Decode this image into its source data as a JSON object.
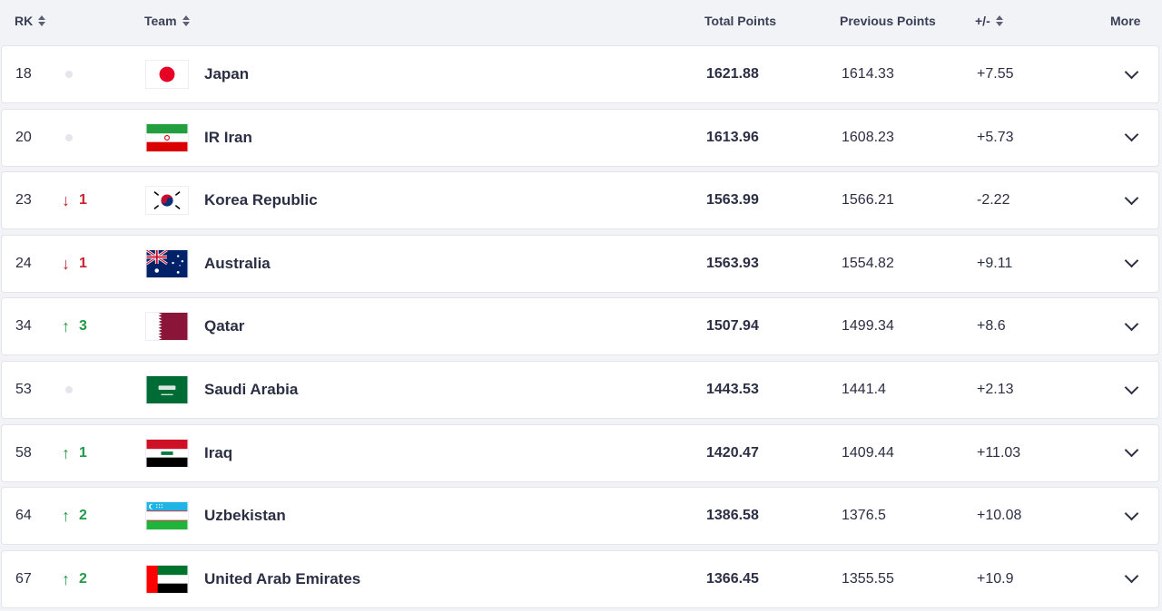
{
  "header": {
    "rk": "RK",
    "team": "Team",
    "total_points": "Total Points",
    "previous_points": "Previous Points",
    "diff": "+/-",
    "more": "More"
  },
  "rows": [
    {
      "rank": "18",
      "trend": "none",
      "change": "",
      "team": "Japan",
      "flag": "japan",
      "total": "1621.88",
      "previous": "1614.33",
      "diff": "+7.55"
    },
    {
      "rank": "20",
      "trend": "none",
      "change": "",
      "team": "IR Iran",
      "flag": "iran",
      "total": "1613.96",
      "previous": "1608.23",
      "diff": "+5.73"
    },
    {
      "rank": "23",
      "trend": "down",
      "change": "1",
      "team": "Korea Republic",
      "flag": "korea",
      "total": "1563.99",
      "previous": "1566.21",
      "diff": "-2.22"
    },
    {
      "rank": "24",
      "trend": "down",
      "change": "1",
      "team": "Australia",
      "flag": "australia",
      "total": "1563.93",
      "previous": "1554.82",
      "diff": "+9.11"
    },
    {
      "rank": "34",
      "trend": "up",
      "change": "3",
      "team": "Qatar",
      "flag": "qatar",
      "total": "1507.94",
      "previous": "1499.34",
      "diff": "+8.6"
    },
    {
      "rank": "53",
      "trend": "none",
      "change": "",
      "team": "Saudi Arabia",
      "flag": "saudi",
      "total": "1443.53",
      "previous": "1441.4",
      "diff": "+2.13"
    },
    {
      "rank": "58",
      "trend": "up",
      "change": "1",
      "team": "Iraq",
      "flag": "iraq",
      "total": "1420.47",
      "previous": "1409.44",
      "diff": "+11.03"
    },
    {
      "rank": "64",
      "trend": "up",
      "change": "2",
      "team": "Uzbekistan",
      "flag": "uzbekistan",
      "total": "1386.58",
      "previous": "1376.5",
      "diff": "+10.08"
    },
    {
      "rank": "67",
      "trend": "up",
      "change": "2",
      "team": "United Arab Emirates",
      "flag": "uae",
      "total": "1366.45",
      "previous": "1355.55",
      "diff": "+10.9"
    }
  ]
}
